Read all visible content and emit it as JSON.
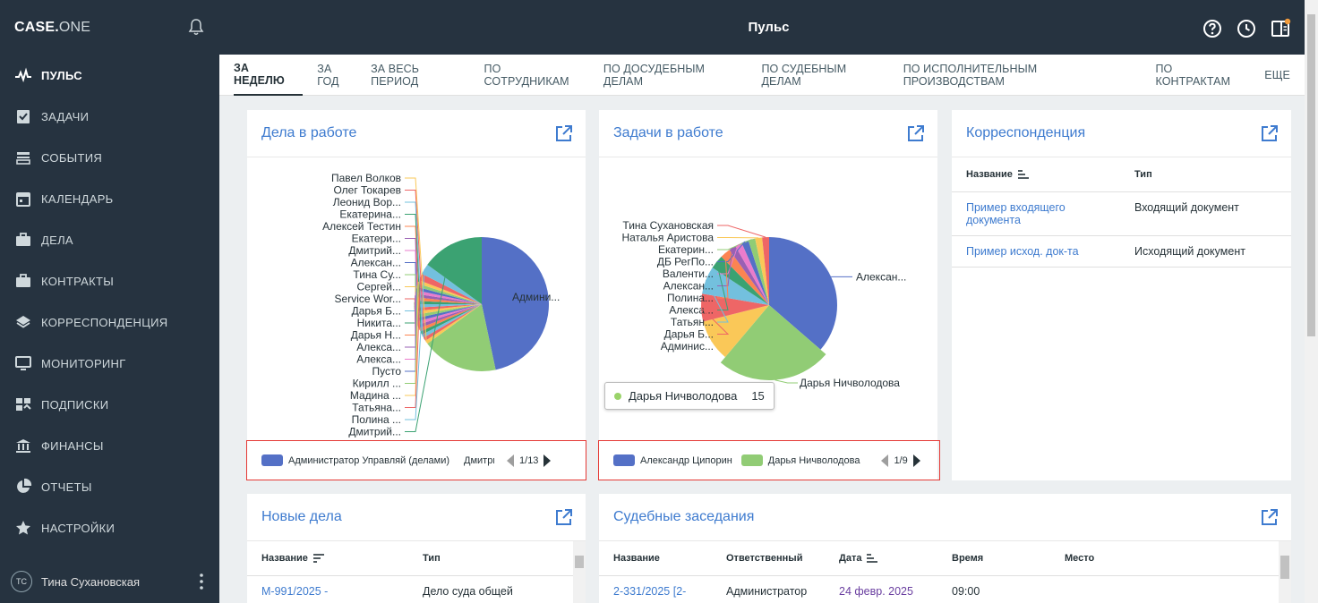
{
  "app": {
    "logo_bold": "CASE.",
    "logo_thin": "ONE",
    "page_title": "Пульс"
  },
  "sidebar": {
    "items": [
      {
        "label": "ПУЛЬС",
        "icon": "pulse-icon",
        "active": true
      },
      {
        "label": "ЗАДАЧИ",
        "icon": "task-check-icon"
      },
      {
        "label": "СОБЫТИЯ",
        "icon": "events-icon"
      },
      {
        "label": "КАЛЕНДАРЬ",
        "icon": "calendar-icon"
      },
      {
        "label": "ДЕЛА",
        "icon": "briefcase-icon"
      },
      {
        "label": "КОНТРАКТЫ",
        "icon": "briefcase-icon"
      },
      {
        "label": "КОРРЕСПОНДЕНЦИЯ",
        "icon": "layers-icon"
      },
      {
        "label": "МОНИТОРИНГ",
        "icon": "monitor-icon"
      },
      {
        "label": "ПОДПИСКИ",
        "icon": "subscriptions-icon"
      },
      {
        "label": "ФИНАНСЫ",
        "icon": "bank-icon"
      },
      {
        "label": "ОТЧЕТЫ",
        "icon": "pie-icon"
      },
      {
        "label": "НАСТРОЙКИ",
        "icon": "star-icon"
      }
    ],
    "user": {
      "initials": "TC",
      "name": "Тина Сухановская"
    }
  },
  "tabs": [
    {
      "label": "ЗА НЕДЕЛЮ",
      "active": true
    },
    {
      "label": "ЗА ГОД"
    },
    {
      "label": "ЗА ВЕСЬ ПЕРИОД"
    },
    {
      "label": "ПО СОТРУДНИКАМ"
    },
    {
      "label": "ПО ДОСУДЕБНЫМ ДЕЛАМ"
    },
    {
      "label": "ПО СУДЕБНЫМ ДЕЛАМ"
    },
    {
      "label": "ПО ИСПОЛНИТЕЛЬНЫМ ПРОИЗВОДСТВАМ"
    },
    {
      "label": "ПО КОНТРАКТАМ"
    },
    {
      "label": "ЕЩЕ"
    }
  ],
  "cases_card": {
    "title": "Дела в работе",
    "legend": [
      {
        "label": "Администратор Управляй (делами)",
        "color": "#5470c6"
      },
      {
        "label": "Дмитрий",
        "color": "#91cc75"
      }
    ],
    "pager": "1/13"
  },
  "tasks_card": {
    "title": "Задачи в работе",
    "legend": [
      {
        "label": "Александр Ципорин",
        "color": "#5470c6"
      },
      {
        "label": "Дарья Ничволодова",
        "color": "#91cc75"
      }
    ],
    "pager": "1/9",
    "tooltip": {
      "name": "Дарья Ничволодова",
      "value": "15"
    }
  },
  "corr_card": {
    "title": "Корреспонденция",
    "col_name": "Название",
    "col_type": "Тип",
    "rows": [
      {
        "name": "Пример входящего документа",
        "type": "Входящий документ"
      },
      {
        "name": "Пример исход. док-та",
        "type": "Исходящий документ"
      }
    ]
  },
  "new_cases_card": {
    "title": "Новые дела",
    "col_name": "Название",
    "col_type": "Тип",
    "row_name": "М-991/2025 -",
    "row_type": "Дело суда общей"
  },
  "hearings_card": {
    "title": "Судебные заседания",
    "cols": [
      "Название",
      "Ответственный",
      "Дата",
      "Время",
      "Место"
    ],
    "row": {
      "name": "2-331/2025 [2-",
      "resp": "Администратор",
      "date": "24 февр. 2025",
      "time": "09:00"
    }
  },
  "chart_data": [
    {
      "type": "pie",
      "title": "Дела в работе",
      "labels": [
        "Администратор Управляй (делами)",
        "Дмитрий",
        "Павел Волков",
        "Олег Токарев",
        "Леонид Вор...",
        "Екатерина...",
        "Алексей Тестин",
        "Екатери...",
        "Дмитрий...",
        "Алексан...",
        "Тина Су...",
        "Сергей...",
        "Service Wor...",
        "Дарья Б...",
        "Никита...",
        "Дарья Н...",
        "Алекса...",
        "Алекса...",
        "Пусто",
        "Кирилл ...",
        "Мадина ...",
        "Татьяна...",
        "Полина ...",
        "Дмитрий..."
      ],
      "slice_labels": {
        "Администратор Управляй (делами)": "Админи..."
      },
      "values": [
        56,
        22,
        1,
        1,
        1,
        1,
        1,
        1,
        1,
        1,
        1,
        1,
        1,
        1,
        1,
        1,
        1,
        1,
        1,
        1,
        1,
        2,
        3,
        18
      ],
      "legend_position": "bottom"
    },
    {
      "type": "pie",
      "title": "Задачи в работе",
      "labels": [
        "Александр Ципорин",
        "Дарья Ничволодова",
        "Админис...",
        "Дарья Б...",
        "Татьян...",
        "Алекса...",
        "Полина...",
        "Алексан...",
        "Валенти...",
        "ДБ РегПо...",
        "Екатерин...",
        "Наталья Аристова",
        "Тина Сухановская"
      ],
      "slice_labels": {
        "Александр Ципорин": "Алексан..."
      },
      "values": [
        22,
        15,
        6,
        4,
        4,
        2,
        1.5,
        1,
        1,
        1,
        1,
        1,
        1
      ],
      "legend_position": "bottom"
    }
  ]
}
